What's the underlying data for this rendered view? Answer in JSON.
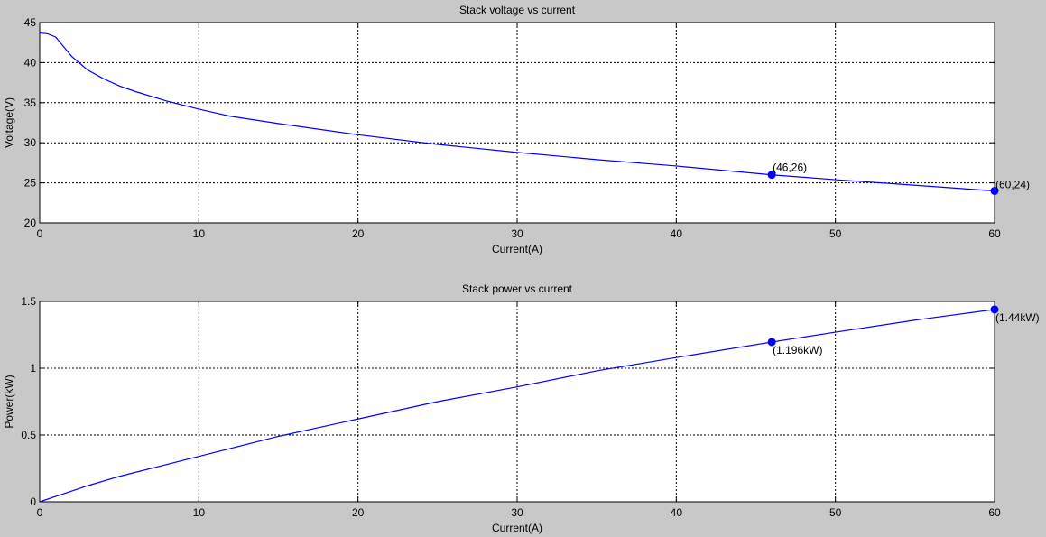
{
  "chart_data": [
    {
      "type": "line",
      "title": "Stack voltage vs current",
      "xlabel": "Current(A)",
      "ylabel": "Voltage(V)",
      "xlim": [
        0,
        60
      ],
      "ylim": [
        20,
        45
      ],
      "xticks": [
        0,
        10,
        20,
        30,
        40,
        50,
        60
      ],
      "yticks": [
        20,
        25,
        30,
        35,
        40,
        45
      ],
      "grid": true,
      "line_color": "#0000ff",
      "series": [
        {
          "x": [
            0,
            0.5,
            1,
            1.5,
            2,
            3,
            4,
            5,
            6,
            8,
            10,
            12,
            15,
            20,
            25,
            30,
            35,
            40,
            46,
            50,
            55,
            60
          ],
          "values": [
            43.7,
            43.6,
            43.2,
            42.0,
            40.8,
            39.1,
            38.0,
            37.1,
            36.4,
            35.2,
            34.2,
            33.3,
            32.4,
            31.0,
            29.8,
            28.8,
            27.9,
            27.1,
            26.0,
            25.4,
            24.7,
            24.0
          ]
        }
      ],
      "markers": [
        {
          "x": 46,
          "y": 26,
          "label": "(46,26)"
        },
        {
          "x": 60,
          "y": 24,
          "label": "(60,24)"
        }
      ]
    },
    {
      "type": "line",
      "title": "Stack power vs current",
      "xlabel": "Current(A)",
      "ylabel": "Power(kW)",
      "xlim": [
        0,
        60
      ],
      "ylim": [
        0,
        1.5
      ],
      "xticks": [
        0,
        10,
        20,
        30,
        40,
        50,
        60
      ],
      "yticks": [
        0,
        0.5,
        1,
        1.5
      ],
      "grid": true,
      "line_color": "#0000ff",
      "series": [
        {
          "x": [
            0,
            1,
            2,
            3,
            5,
            8,
            10,
            15,
            20,
            25,
            30,
            35,
            40,
            46,
            50,
            55,
            60
          ],
          "values": [
            0,
            0.04,
            0.08,
            0.12,
            0.19,
            0.28,
            0.34,
            0.49,
            0.62,
            0.75,
            0.86,
            0.98,
            1.08,
            1.196,
            1.27,
            1.36,
            1.44
          ]
        }
      ],
      "markers": [
        {
          "x": 46,
          "y": 1.196,
          "label": "(1.196kW)"
        },
        {
          "x": 60,
          "y": 1.44,
          "label": "(1.44kW)"
        }
      ]
    }
  ]
}
